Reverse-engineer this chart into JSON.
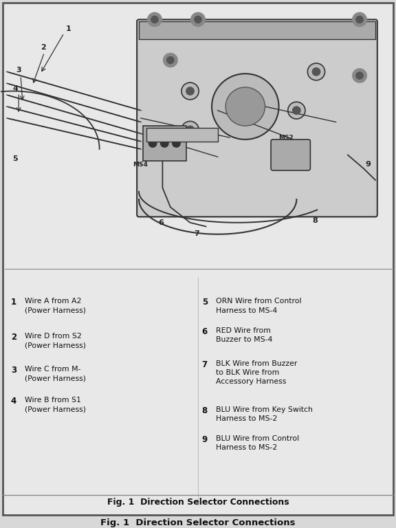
{
  "title": "Fig. 1  Direction Selector Connections",
  "background_color": "#d8d8d8",
  "inner_background": "#e8e8e8",
  "border_color": "#555555",
  "legend_items_left": [
    [
      "1",
      "Wire A from A2\n(Power Harness)"
    ],
    [
      "2",
      "Wire D from S2\n(Power Harness)"
    ],
    [
      "3",
      "Wire C from M-\n(Power Harness)"
    ],
    [
      "4",
      "Wire B from S1\n(Power Harness)"
    ]
  ],
  "legend_items_right": [
    [
      "5",
      "ORN Wire from Control\nHarness to MS-4"
    ],
    [
      "6",
      "RED Wire from\nBuzzer to MS-4"
    ],
    [
      "7",
      "BLK Wire from Buzzer\nto BLK Wire from\nAccessory Harness"
    ],
    [
      "8",
      "BLU Wire from Key Switch\nHarness to MS-2"
    ],
    [
      "9",
      "BLU Wire from Control\nHarness to MS-2"
    ]
  ]
}
